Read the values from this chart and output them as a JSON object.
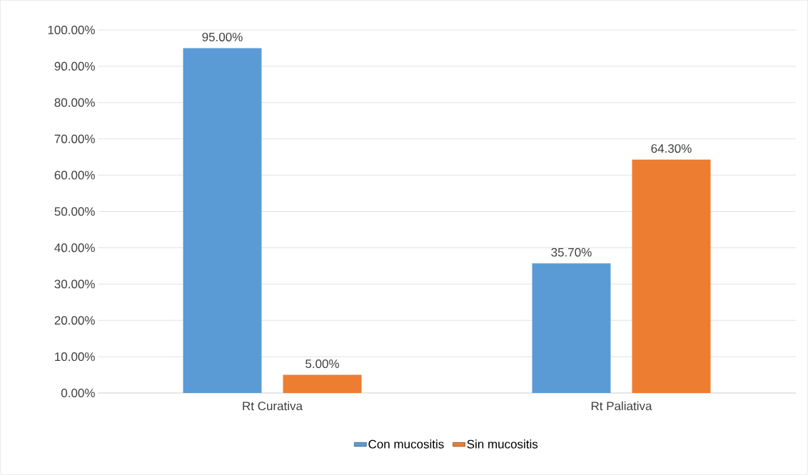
{
  "chart_data": {
    "type": "bar",
    "categories": [
      "Rt Curativa",
      "Rt Paliativa"
    ],
    "series": [
      {
        "name": "Con mucositis",
        "color": "#5b9bd5",
        "values": [
          95,
          35.7
        ],
        "value_labels": [
          "95.00%",
          "35.70%"
        ]
      },
      {
        "name": "Sin mucositis",
        "color": "#ed7d31",
        "values": [
          5,
          64.3
        ],
        "value_labels": [
          "5.00%",
          "64.30%"
        ]
      }
    ],
    "ylim": [
      0,
      100
    ],
    "yticks": [
      {
        "value": 0,
        "label": "0.00%"
      },
      {
        "value": 10,
        "label": "10.00%"
      },
      {
        "value": 20,
        "label": "20.00%"
      },
      {
        "value": 30,
        "label": "30.00%"
      },
      {
        "value": 40,
        "label": "40.00%"
      },
      {
        "value": 50,
        "label": "50.00%"
      },
      {
        "value": 60,
        "label": "60.00%"
      },
      {
        "value": 70,
        "label": "70.00%"
      },
      {
        "value": 80,
        "label": "80.00%"
      },
      {
        "value": 90,
        "label": "90.00%"
      },
      {
        "value": 100,
        "label": "100.00%"
      }
    ],
    "grid": "y",
    "legend": "bottom"
  }
}
